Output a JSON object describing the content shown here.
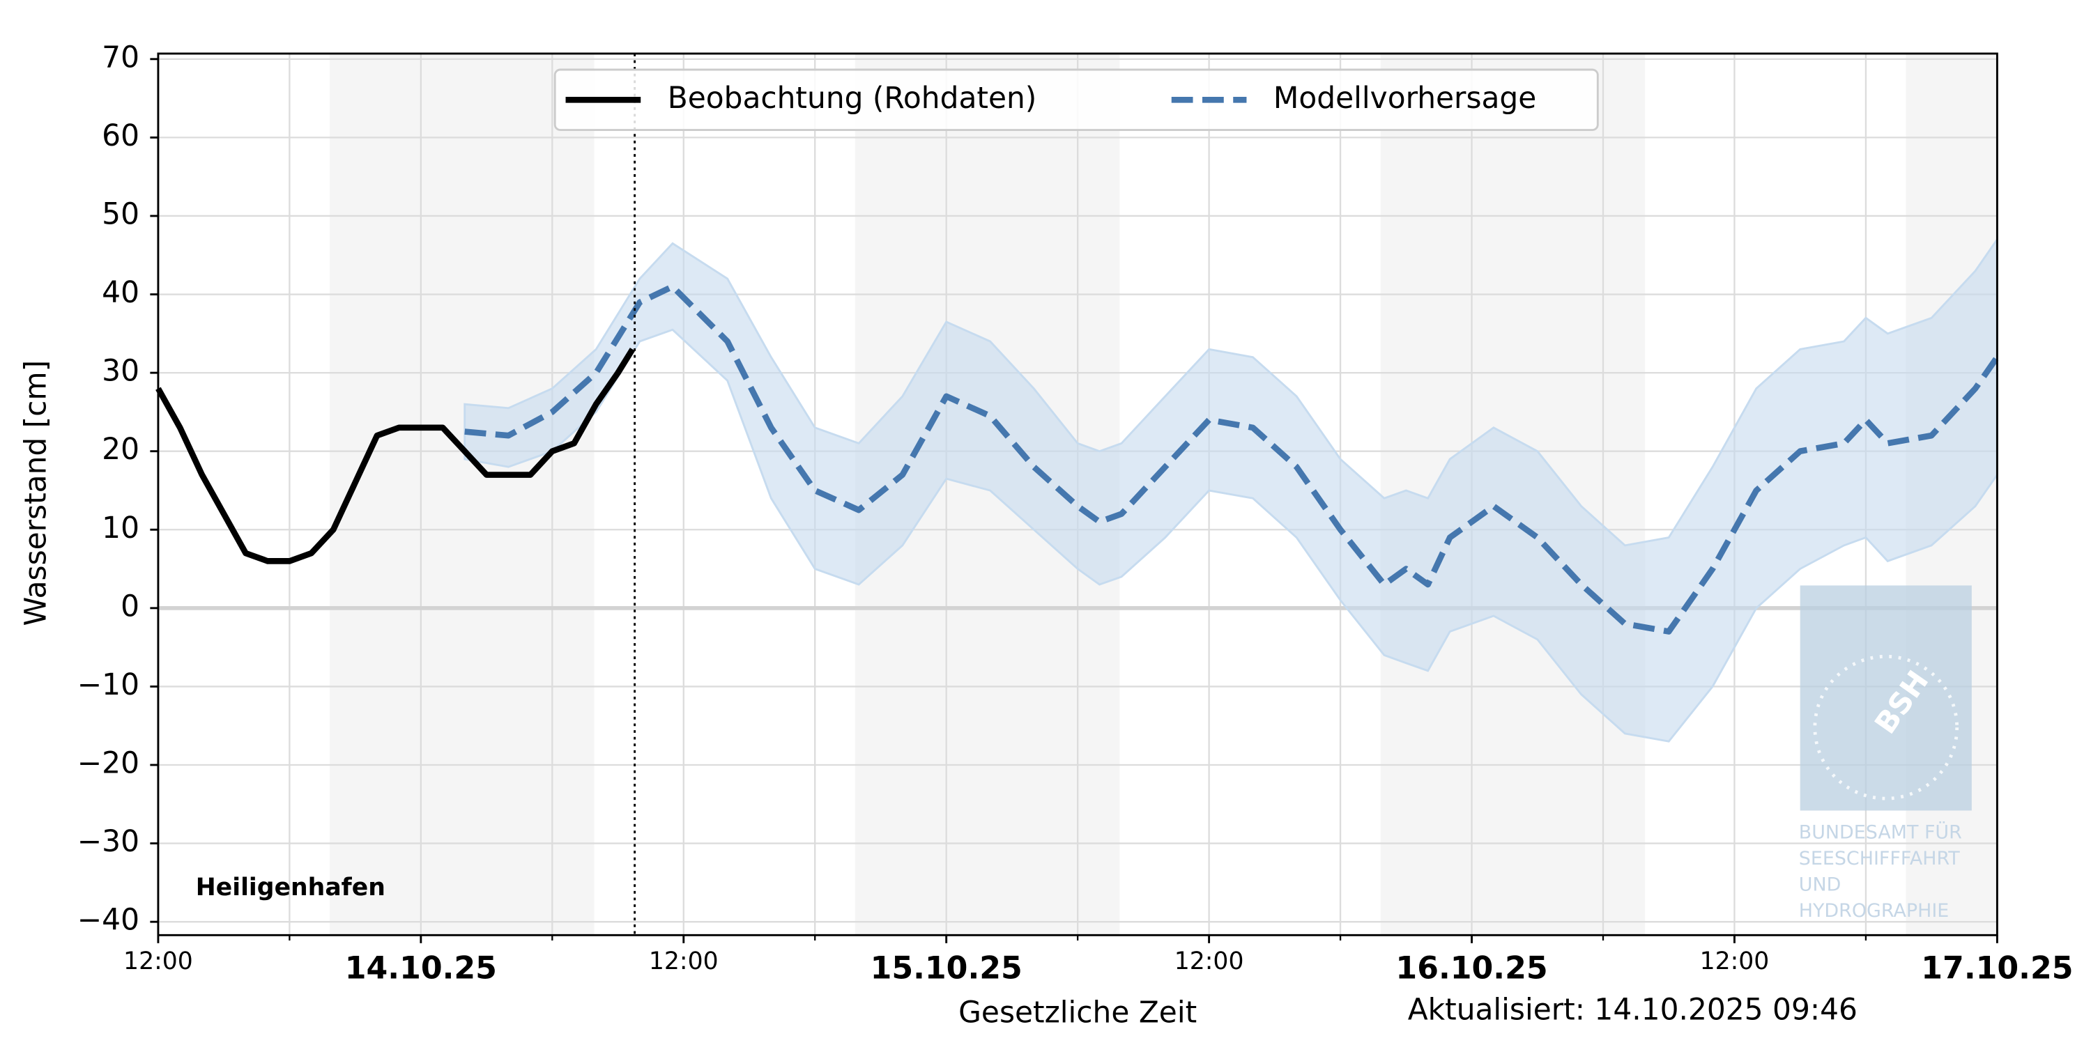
{
  "chart_data": {
    "type": "line",
    "ylabel": "Wasserstand [cm]",
    "xlabel": "Gesetzliche Zeit",
    "station": "Heiligenhafen",
    "updated": "Aktualisiert: 14.10.2025 09:46",
    "now": "2025-10-14T09:46",
    "legend": "upper center",
    "grid": true,
    "xlim": [
      "2025-10-13T12:00",
      "2025-10-17T00:00"
    ],
    "ylim": [
      -41.7,
      70.7
    ],
    "yticks": [
      {
        "value": -40,
        "label": "−40"
      },
      {
        "value": -30,
        "label": "−30"
      },
      {
        "value": -20,
        "label": "−20"
      },
      {
        "value": -10,
        "label": "−10"
      },
      0,
      10,
      20,
      30,
      40,
      50,
      60,
      70
    ],
    "xticks": [
      {
        "value": "2025-10-13T12:00",
        "label": "12:00"
      },
      {
        "value": "2025-10-14T00:00",
        "label": "14.10.25"
      },
      {
        "value": "2025-10-14T12:00",
        "label": "12:00"
      },
      {
        "value": "2025-10-15T00:00",
        "label": "15.10.25"
      },
      {
        "value": "2025-10-15T12:00",
        "label": "12:00"
      },
      {
        "value": "2025-10-16T00:00",
        "label": "16.10.25"
      },
      {
        "value": "2025-10-16T12:00",
        "label": "12:00"
      },
      {
        "value": "2025-10-17T00:00",
        "label": "17.10.25"
      }
    ],
    "xgrid": [
      "2025-10-13T18:00",
      "2025-10-14T06:00",
      "2025-10-14T18:00",
      "2025-10-15T06:00",
      "2025-10-15T18:00",
      "2025-10-16T06:00",
      "2025-10-16T18:00"
    ],
    "night_periods": [
      [
        "2025-10-13T19:50",
        "2025-10-14T07:55"
      ],
      [
        "2025-10-14T19:50",
        "2025-10-15T07:55"
      ],
      [
        "2025-10-15T19:50",
        "2025-10-16T07:55"
      ],
      [
        "2025-10-16T19:50",
        "2025-10-17T00:00"
      ]
    ],
    "series": [
      {
        "name": "Beobachtung (Rohdaten)",
        "color": "#000000",
        "style": "solid",
        "x": [
          "2025-10-13T12:00",
          "2025-10-13T13:00",
          "2025-10-13T14:00",
          "2025-10-13T15:00",
          "2025-10-13T16:00",
          "2025-10-13T17:00",
          "2025-10-13T18:00",
          "2025-10-13T19:00",
          "2025-10-13T20:00",
          "2025-10-13T21:00",
          "2025-10-13T22:00",
          "2025-10-13T23:00",
          "2025-10-14T00:00",
          "2025-10-14T01:00",
          "2025-10-14T02:00",
          "2025-10-14T03:00",
          "2025-10-14T04:00",
          "2025-10-14T05:00",
          "2025-10-14T06:00",
          "2025-10-14T07:00",
          "2025-10-14T08:00",
          "2025-10-14T09:00",
          "2025-10-14T09:40"
        ],
        "values": [
          28,
          23,
          17,
          12,
          7,
          6,
          6,
          7,
          10,
          16,
          22,
          23,
          23,
          23,
          20,
          17,
          17,
          17,
          20,
          21,
          26,
          30,
          33
        ]
      },
      {
        "name": "Modellvorhersage",
        "color": "#4577ae",
        "band_color": "#c6dbef",
        "style": "dashed",
        "x": [
          "2025-10-14T02:00",
          "2025-10-14T04:00",
          "2025-10-14T06:00",
          "2025-10-14T08:00",
          "2025-10-14T10:00",
          "2025-10-14T11:30",
          "2025-10-14T14:00",
          "2025-10-14T16:00",
          "2025-10-14T18:00",
          "2025-10-14T20:00",
          "2025-10-14T22:00",
          "2025-10-15T00:00",
          "2025-10-15T02:00",
          "2025-10-15T04:00",
          "2025-10-15T06:00",
          "2025-10-15T07:00",
          "2025-10-15T08:00",
          "2025-10-15T10:00",
          "2025-10-15T12:00",
          "2025-10-15T14:00",
          "2025-10-15T16:00",
          "2025-10-15T18:00",
          "2025-10-15T20:00",
          "2025-10-15T21:00",
          "2025-10-15T22:00",
          "2025-10-15T23:00",
          "2025-10-16T01:00",
          "2025-10-16T03:00",
          "2025-10-16T05:00",
          "2025-10-16T07:00",
          "2025-10-16T09:00",
          "2025-10-16T11:00",
          "2025-10-16T13:00",
          "2025-10-16T15:00",
          "2025-10-16T17:00",
          "2025-10-16T18:00",
          "2025-10-16T19:00",
          "2025-10-16T21:00",
          "2025-10-16T23:00",
          "2025-10-17T00:00"
        ],
        "values": [
          22.5,
          22,
          25,
          30,
          39,
          41,
          34,
          23,
          15,
          12.5,
          17,
          27,
          24.5,
          18,
          13,
          11,
          12,
          18,
          24,
          23,
          18,
          10,
          3,
          5,
          3,
          9,
          13,
          9,
          3,
          -2,
          -3,
          5,
          15,
          20,
          21,
          24,
          21,
          22,
          28,
          32
        ],
        "lower": [
          19,
          18,
          20,
          25,
          34,
          35.5,
          29,
          14,
          5,
          3,
          8,
          16.5,
          15,
          10,
          5,
          3,
          4,
          9,
          15,
          14,
          9,
          1,
          -6,
          -7,
          -8,
          -3,
          -1,
          -4,
          -11,
          -16,
          -17,
          -10,
          0,
          5,
          8,
          9,
          6,
          8,
          13,
          17
        ],
        "upper": [
          26,
          25.5,
          28,
          33,
          42,
          46.5,
          42,
          32,
          23,
          21,
          27,
          36.5,
          34,
          28,
          21,
          20,
          21,
          27,
          33,
          32,
          27,
          19,
          14,
          15,
          14,
          19,
          23,
          20,
          13,
          8,
          9,
          18,
          28,
          33,
          34,
          37,
          35,
          37,
          43,
          47
        ]
      }
    ],
    "logo": {
      "mark": "BSH",
      "lines": [
        "BUNDESAMT FÜR",
        "SEESCHIFFFAHRT",
        "UND",
        "HYDROGRAPHIE"
      ]
    }
  }
}
